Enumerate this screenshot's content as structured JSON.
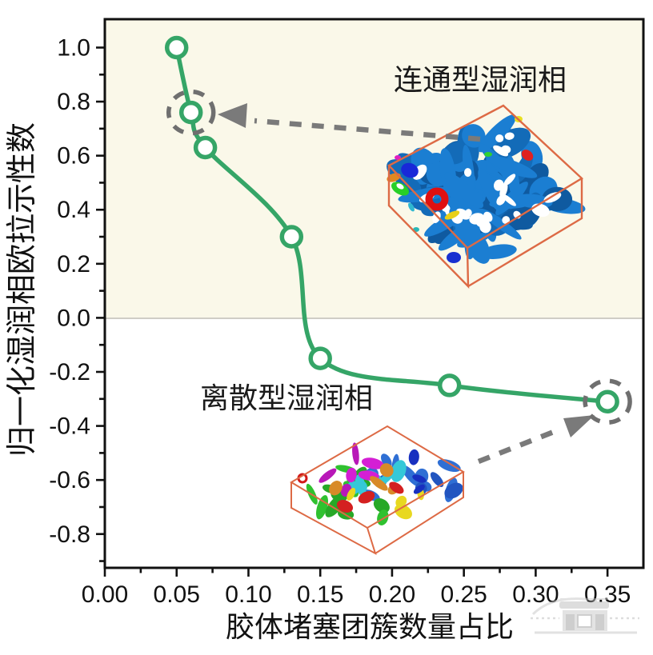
{
  "figure": {
    "x_axis_title": "胶体堵塞团簇数量占比",
    "y_axis_title": "归一化湿润相欧拉示性数",
    "annotation_connected_label": "连通型湿润相",
    "annotation_discrete_label": "离散型湿润相"
  },
  "chart_data": {
    "type": "line",
    "title": "",
    "xlabel": "胶体堵塞团簇数量占比",
    "ylabel": "归一化湿润相欧拉示性数",
    "x": [
      0.05,
      0.06,
      0.07,
      0.13,
      0.15,
      0.24,
      0.35
    ],
    "y": [
      1.0,
      0.76,
      0.63,
      0.3,
      -0.15,
      -0.25,
      -0.31
    ],
    "xlim": [
      0,
      0.375
    ],
    "ylim": [
      -0.925,
      1.105
    ],
    "x_ticks": {
      "values": [
        0,
        0.05,
        0.1,
        0.15,
        0.2,
        0.25,
        0.3,
        0.35
      ],
      "labels": [
        "0.00",
        "0.05",
        "0.10",
        "0.15",
        "0.20",
        "0.25",
        "0.30",
        "0.35"
      ]
    },
    "x_minor_tick_step": 0.025,
    "y_ticks": {
      "values": [
        -0.8,
        -0.6,
        -0.4,
        -0.2,
        0.0,
        0.2,
        0.4,
        0.6,
        0.8,
        1.0
      ],
      "labels": [
        "-0.8",
        "-0.6",
        "-0.4",
        "-0.2",
        "0.0",
        "0.2",
        "0.4",
        "0.6",
        "0.8",
        "1.0"
      ]
    },
    "y_minor_tick_step": 0.1,
    "grid": false,
    "zero_line": true,
    "legend": null,
    "marker": "open-circle",
    "line_color": "#35a567",
    "band_above_zero_color": "#faf8e9",
    "zero_line_color": "#cfcdc6",
    "annotation_color": "#6f6f6f",
    "annotations": [
      {
        "label": "连通型湿润相",
        "highlighted_point": [
          0.06,
          0.76
        ],
        "inset": "blue connected pore-network 3D volume"
      },
      {
        "label": "离散型湿润相",
        "highlighted_point": [
          0.35,
          -0.31
        ],
        "inset": "multicolored discrete cluster 3D volume"
      }
    ]
  },
  "colors": {
    "axis": "#111111",
    "series_green": "#35a567",
    "cream_band": "#faf8e9",
    "gray_annotation": "#6f6f6f",
    "inset_wireframe_orange": "#dd6a45",
    "inset_blue_phase": "#1b7ed2",
    "watermark_gray": "#c6c6c6"
  }
}
